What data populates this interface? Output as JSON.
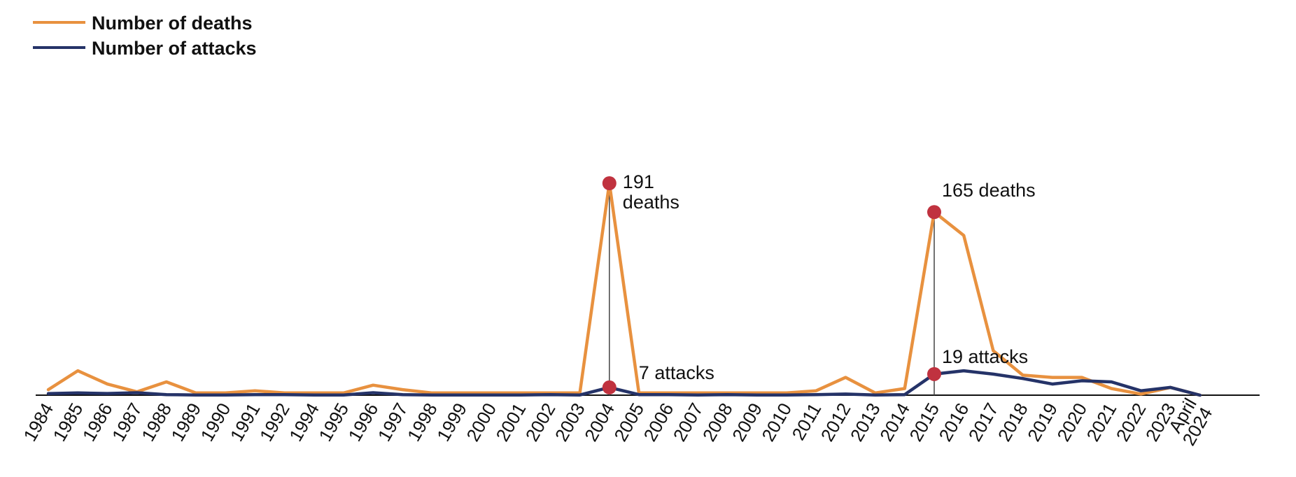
{
  "chart_data": {
    "type": "line",
    "legend_position": "top-left",
    "categories": [
      "1984",
      "1985",
      "1986",
      "1987",
      "1988",
      "1989",
      "1990",
      "1991",
      "1992",
      "1994",
      "1995",
      "1996",
      "1997",
      "1998",
      "1999",
      "2000",
      "2001",
      "2002",
      "2003",
      "2004",
      "2005",
      "2006",
      "2007",
      "2008",
      "2009",
      "2010",
      "2011",
      "2012",
      "2013",
      "2014",
      "2015",
      "2016",
      "2017",
      "2018",
      "2019",
      "2020",
      "2021",
      "2022",
      "2023",
      "April 2024"
    ],
    "highlight_category": "April 2024",
    "series": [
      {
        "name": "Number of deaths",
        "color": "#E8913F",
        "values": [
          5,
          22,
          10,
          3,
          12,
          2,
          2,
          4,
          2,
          2,
          2,
          9,
          5,
          2,
          2,
          2,
          2,
          2,
          2,
          191,
          2,
          2,
          2,
          2,
          2,
          2,
          4,
          16,
          2,
          6,
          165,
          144,
          40,
          18,
          16,
          16,
          6,
          1,
          7,
          0
        ]
      },
      {
        "name": "Number of attacks",
        "color": "#253368",
        "values": [
          1.4,
          2,
          1.5,
          2.2,
          0.5,
          0.2,
          0.2,
          0.5,
          0.5,
          0.2,
          0.2,
          2.2,
          0.5,
          0.2,
          0.2,
          0.2,
          0.2,
          0.5,
          0.2,
          7,
          0.5,
          0.5,
          0.2,
          0.5,
          0.2,
          0.2,
          0.5,
          1,
          0.2,
          0.5,
          19,
          22,
          19,
          15,
          10,
          13,
          12,
          4,
          7,
          0
        ]
      }
    ],
    "annotations": [
      {
        "category": "2004",
        "series": 0,
        "text": [
          "191",
          "deaths"
        ]
      },
      {
        "category": "2004",
        "series": 1,
        "text": [
          "7 attacks"
        ]
      },
      {
        "category": "2015",
        "series": 0,
        "text": [
          "165 deaths"
        ]
      },
      {
        "category": "2015",
        "series": 1,
        "text": [
          "19 attacks"
        ]
      }
    ],
    "colors": {
      "marker": "#C0323F",
      "highlight_label": "#8C1D3A",
      "axis": "#111111"
    }
  }
}
